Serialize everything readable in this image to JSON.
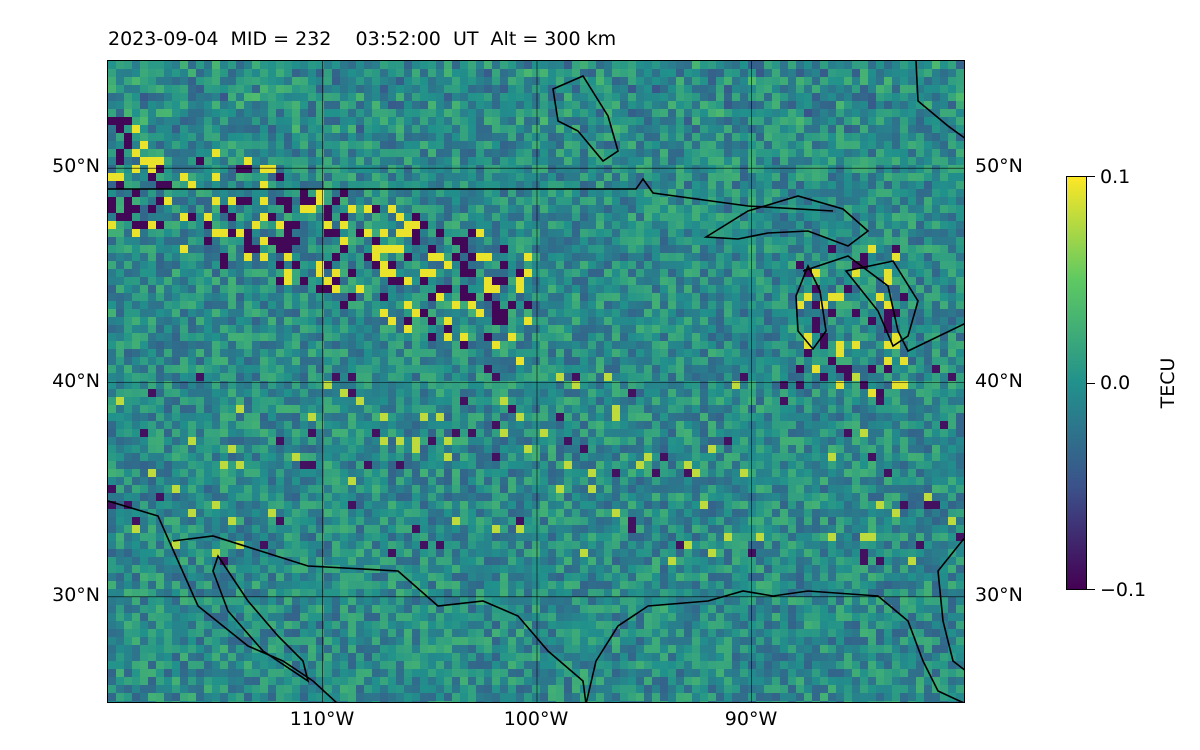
{
  "title": "2023-09-04  MID = 232    03:52:00  UT  Alt = 300 km",
  "map": {
    "lon_range": [
      -120,
      -80
    ],
    "lat_range": [
      25,
      55
    ],
    "gridlines": true,
    "lat_labels": [
      "50°N",
      "40°N",
      "30°N"
    ],
    "lon_labels": [
      "110°W",
      "100°W",
      "90°W"
    ],
    "lat_values": [
      50,
      40,
      30
    ],
    "lon_values": [
      -110,
      -100,
      -90
    ],
    "field": "TEC perturbation",
    "colormap": "viridis"
  },
  "colorbar": {
    "label": "TECU",
    "ticks": [
      "0.1",
      "0.0",
      "−0.1"
    ],
    "tick_values": [
      0.1,
      0.0,
      -0.1
    ],
    "colors": [
      "#440154",
      "#3b528b",
      "#21918c",
      "#5ec962",
      "#fde725"
    ]
  }
}
